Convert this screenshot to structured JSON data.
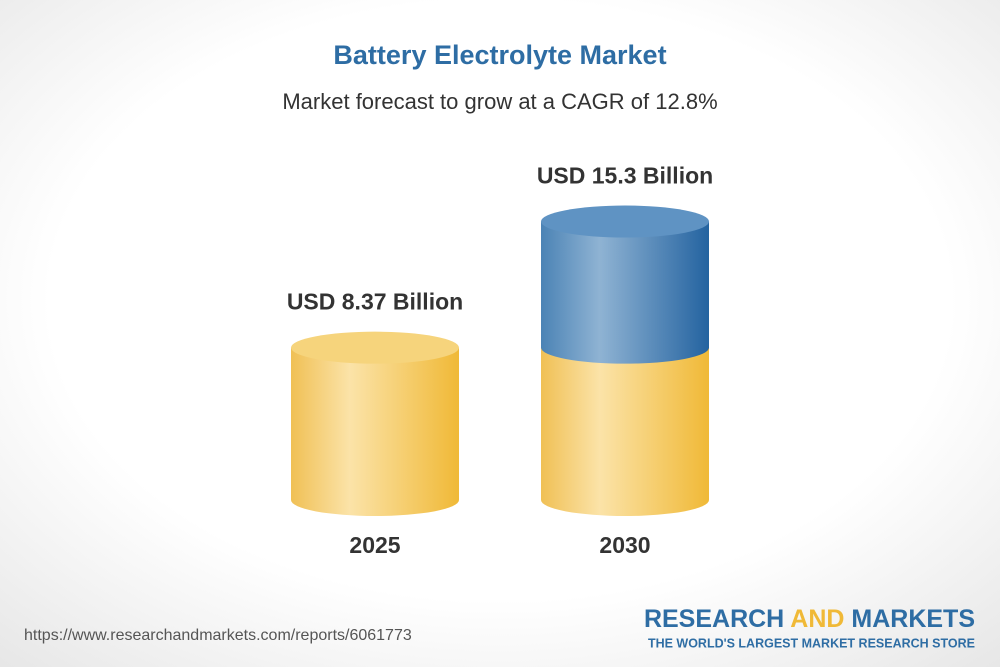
{
  "chart_data": {
    "type": "cylinder",
    "title": "Battery Electrolyte Market",
    "subtitle": "Market forecast to grow at a CAGR of 12.8%",
    "categories": [
      "2025",
      "2030"
    ],
    "values": [
      8.37,
      15.3
    ],
    "value_labels": [
      "USD 8.37 Billion",
      "USD 15.3 Billion"
    ],
    "colors": {
      "base": "#f2bf45",
      "growth": "#2d6ca3"
    }
  },
  "footer": {
    "url": "https://www.researchandmarkets.com/reports/6061773",
    "brand": {
      "research": "RESEARCH",
      "and": "AND",
      "markets": "MARKETS",
      "tagline": "THE WORLD'S LARGEST MARKET RESEARCH STORE"
    }
  }
}
